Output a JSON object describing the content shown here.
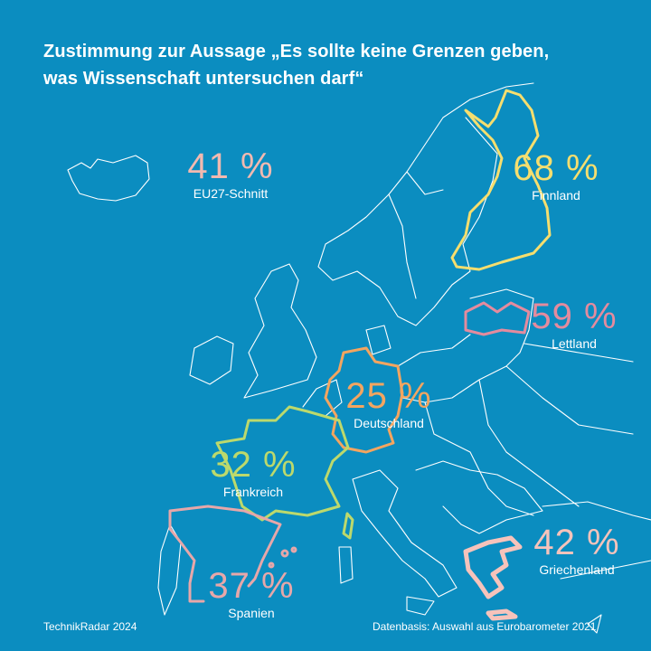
{
  "title": {
    "line1": "Zustimmung zur Aussage „Es sollte keine Grenzen geben,",
    "line2": "was Wissenschaft untersuchen darf“"
  },
  "stats": [
    {
      "id": "eu",
      "value": "41 %",
      "label": "EU27-Schnitt",
      "color": "#f2b9b0"
    },
    {
      "id": "fi",
      "value": "68 %",
      "label": "Finnland",
      "color": "#f6de6e"
    },
    {
      "id": "lv",
      "value": "59 %",
      "label": "Lettland",
      "color": "#e48b9e"
    },
    {
      "id": "de",
      "value": "25 %",
      "label": "Deutschland",
      "color": "#f3a560"
    },
    {
      "id": "fr",
      "value": "32 %",
      "label": "Frankreich",
      "color": "#bcd96c"
    },
    {
      "id": "es",
      "value": "37 %",
      "label": "Spanien",
      "color": "#e7a7a9"
    },
    {
      "id": "gr",
      "value": "42 %",
      "label": "Griechenland",
      "color": "#f6c3bb"
    }
  ],
  "footer": {
    "left": "TechnikRadar 2024",
    "right": "Datenbasis: Auswahl aus Eurobarometer 2021"
  }
}
